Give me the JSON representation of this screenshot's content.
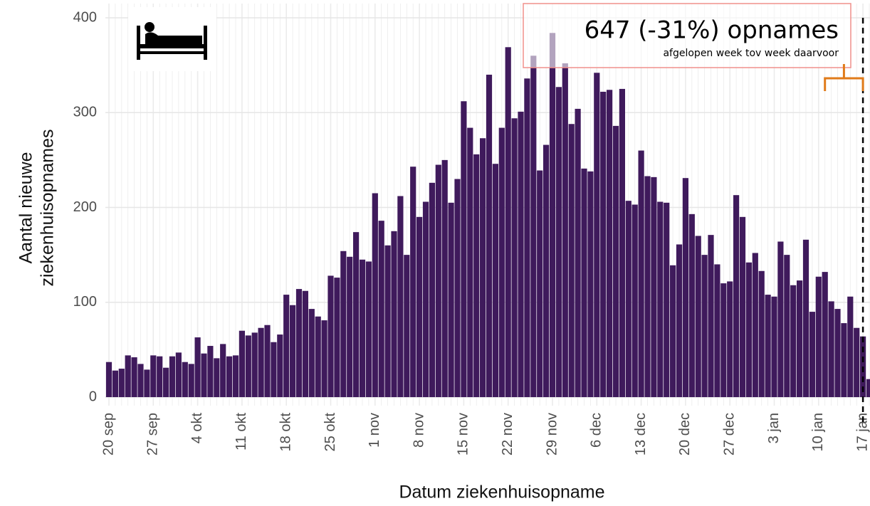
{
  "chart_data": {
    "type": "bar",
    "annotation": "647 (-31%) opnames",
    "annotation_sub": "afgelopen week tov week daarvoor",
    "xlabel": "Datum ziekenhuisopname",
    "ylabel": [
      "Aantal nieuwe",
      "ziekenhuisopnames"
    ],
    "color": "#3f1a5c",
    "ylim": [
      -9,
      415
    ],
    "yticks": [
      0,
      100,
      200,
      300,
      400
    ],
    "grid": true,
    "categories": [
      "20 sep",
      null,
      null,
      null,
      null,
      null,
      null,
      "27 sep",
      null,
      null,
      null,
      null,
      null,
      null,
      "4 okt",
      null,
      null,
      null,
      null,
      null,
      null,
      "11 okt",
      null,
      null,
      null,
      null,
      null,
      null,
      "18 okt",
      null,
      null,
      null,
      null,
      null,
      null,
      "25 okt",
      null,
      null,
      null,
      null,
      null,
      null,
      "1 nov",
      null,
      null,
      null,
      null,
      null,
      null,
      "8 nov",
      null,
      null,
      null,
      null,
      null,
      null,
      "15 nov",
      null,
      null,
      null,
      null,
      null,
      null,
      "22 nov",
      null,
      null,
      null,
      null,
      null,
      null,
      "29 nov",
      null,
      null,
      null,
      null,
      null,
      null,
      "6 dec",
      null,
      null,
      null,
      null,
      null,
      null,
      "13 dec",
      null,
      null,
      null,
      null,
      null,
      null,
      "20 dec",
      null,
      null,
      null,
      null,
      null,
      null,
      "27 dec",
      null,
      null,
      null,
      null,
      null,
      null,
      "3 jan",
      null,
      null,
      null,
      null,
      null,
      null,
      "10 jan",
      null,
      null,
      null,
      null,
      null,
      null,
      "17 jan",
      null
    ],
    "values": [
      37,
      28,
      30,
      44,
      42,
      35,
      29,
      44,
      43,
      31,
      43,
      47,
      37,
      35,
      63,
      46,
      54,
      41,
      56,
      43,
      44,
      70,
      65,
      68,
      73,
      76,
      58,
      66,
      108,
      97,
      114,
      112,
      93,
      85,
      81,
      128,
      126,
      154,
      148,
      174,
      145,
      143,
      215,
      186,
      160,
      175,
      212,
      150,
      243,
      190,
      206,
      226,
      245,
      250,
      205,
      230,
      312,
      284,
      256,
      273,
      340,
      246,
      284,
      369,
      294,
      301,
      336,
      360,
      239,
      266,
      384,
      327,
      352,
      288,
      304,
      241,
      238,
      342,
      322,
      324,
      286,
      325,
      207,
      203,
      260,
      233,
      232,
      206,
      205,
      139,
      161,
      231,
      193,
      170,
      150,
      171,
      140,
      120,
      122,
      213,
      190,
      142,
      152,
      133,
      108,
      106,
      164,
      150,
      118,
      123,
      166,
      90,
      127,
      132,
      101,
      93,
      78,
      106,
      73,
      64,
      19
    ]
  }
}
